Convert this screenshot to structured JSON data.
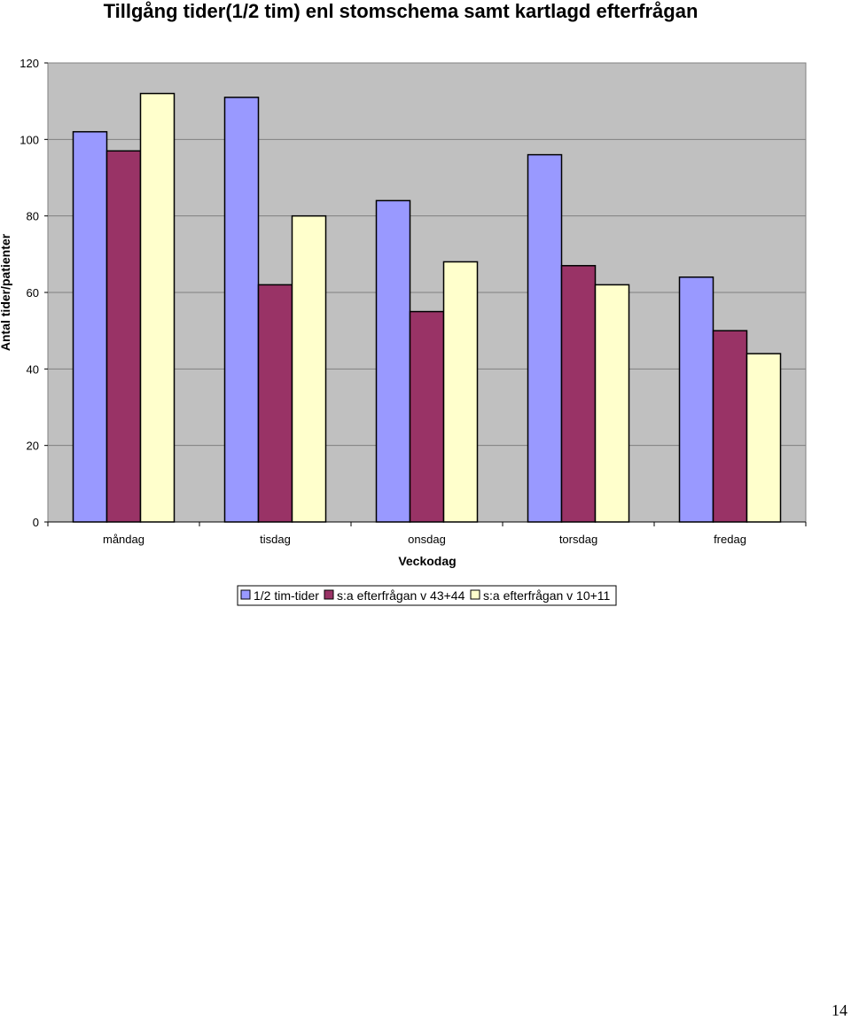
{
  "chart_data": {
    "type": "bar",
    "title": "Tillgång tider(1/2 tim) enl stomschema samt kartlagd efterfrågan",
    "xlabel": "Veckodag",
    "ylabel": "Antal tider/patienter",
    "categories": [
      "måndag",
      "tisdag",
      "onsdag",
      "torsdag",
      "fredag"
    ],
    "ylim": [
      0,
      120
    ],
    "yticks": [
      "0",
      "20",
      "40",
      "60",
      "80",
      "100",
      "120"
    ],
    "grid": true,
    "legend_position": "bottom",
    "plot_background": "#C0C0C0",
    "series": [
      {
        "name": "1/2 tim-tider",
        "color": "#9999FF",
        "values": [
          102,
          111,
          84,
          96,
          64
        ]
      },
      {
        "name": "s:a efterfrågan v 43+44",
        "color": "#993366",
        "values": [
          97,
          62,
          55,
          67,
          50
        ]
      },
      {
        "name": "s:a efterfrågan v 10+11",
        "color": "#FFFFCC",
        "values": [
          112,
          80,
          68,
          62,
          44
        ]
      }
    ]
  },
  "page": {
    "number": "14"
  }
}
